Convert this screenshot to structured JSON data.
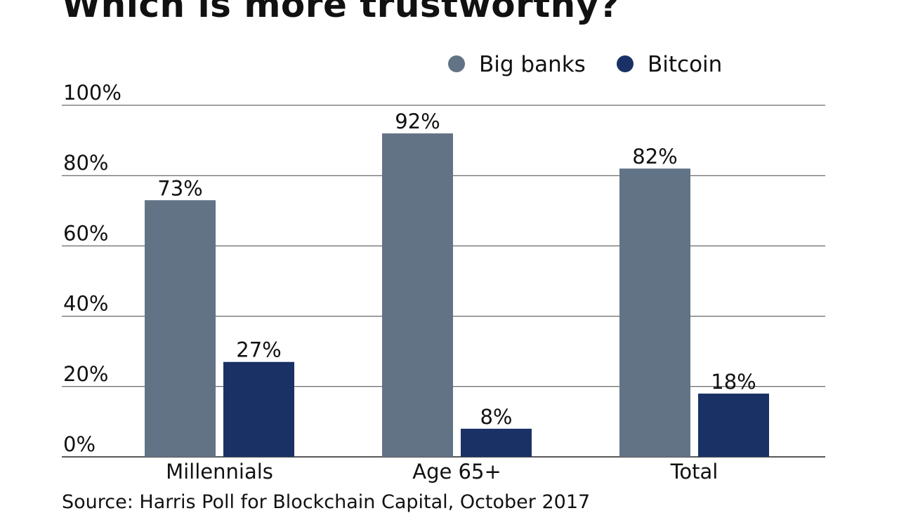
{
  "chart_data": {
    "type": "bar",
    "title": "Which is more trustworthy?",
    "source": "Source: Harris Poll for Blockchain Capital, October 2017",
    "categories": [
      "Millennials",
      "Age 65+",
      "Total"
    ],
    "series": [
      {
        "name": "Big banks",
        "values": [
          73,
          92,
          82
        ],
        "color": "#627386"
      },
      {
        "name": "Bitcoin",
        "values": [
          27,
          8,
          18
        ],
        "color": "#1a3166"
      }
    ],
    "ylim": [
      0,
      100
    ],
    "yticks": [
      0,
      20,
      40,
      60,
      80,
      100
    ],
    "ytick_labels": [
      "0%",
      "20%",
      "40%",
      "60%",
      "80%",
      "100%"
    ],
    "value_suffix": "%",
    "grid": true,
    "legend": "top-right"
  }
}
